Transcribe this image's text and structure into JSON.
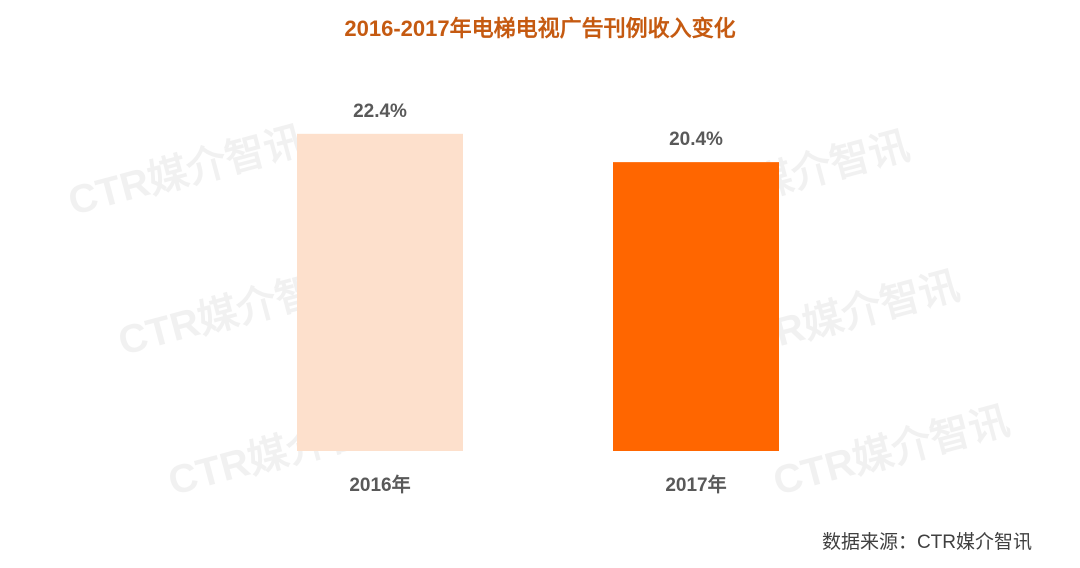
{
  "chart_data": {
    "type": "bar",
    "title": "2016-2017年电梯电视广告刊例收入变化",
    "categories": [
      "2016年",
      "2017年"
    ],
    "values": [
      22.4,
      20.4
    ],
    "value_labels": [
      "22.4%",
      "20.4%"
    ],
    "colors": [
      "#fde0cc",
      "#ff6600"
    ],
    "ylim": [
      0,
      25
    ],
    "source": "数据来源：CTR媒介智讯",
    "watermark": "CTR媒介智讯"
  }
}
